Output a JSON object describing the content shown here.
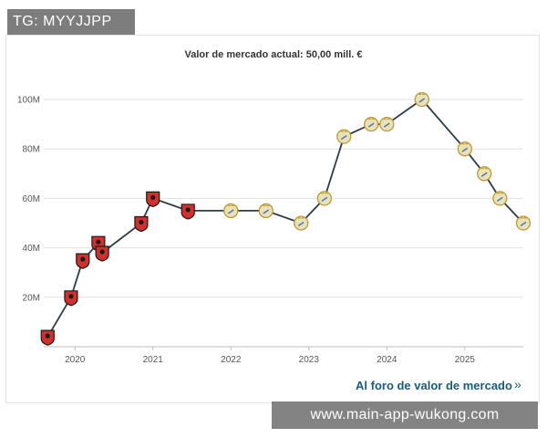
{
  "watermark_top": "TG: MYYJJPP",
  "watermark_bottom": "www.main-app-wukong.com",
  "link_text": "Al foro de valor de mercado",
  "link_icon": "arrow-right-icon",
  "colors": {
    "line": "#2f3b46",
    "grid": "#e2e2e2",
    "link": "#1d5a7a",
    "club_red": "#d0312d",
    "club_white": "#e9e2b8"
  },
  "chart_data": {
    "type": "line",
    "title": "Valor de mercado actual: 50,00 mill. €",
    "xlabel": "",
    "ylabel": "",
    "x_ticks": [
      "2020",
      "2021",
      "2022",
      "2023",
      "2024",
      "2025"
    ],
    "y_ticks": [
      "20M",
      "40M",
      "60M",
      "80M",
      "100M"
    ],
    "ylim": [
      0,
      100
    ],
    "xlim": [
      2019.6,
      2025.75
    ],
    "grid": true,
    "series": [
      {
        "points": [
          {
            "x": 2019.65,
            "y": 4,
            "club": "rennes"
          },
          {
            "x": 2019.95,
            "y": 20,
            "club": "rennes"
          },
          {
            "x": 2020.1,
            "y": 35,
            "club": "rennes"
          },
          {
            "x": 2020.3,
            "y": 42,
            "club": "rennes"
          },
          {
            "x": 2020.35,
            "y": 38,
            "club": "rennes"
          },
          {
            "x": 2020.85,
            "y": 50,
            "club": "rennes"
          },
          {
            "x": 2021.0,
            "y": 60,
            "club": "rennes"
          },
          {
            "x": 2021.45,
            "y": 55,
            "club": "rennes"
          },
          {
            "x": 2022.0,
            "y": 55,
            "club": "real-madrid"
          },
          {
            "x": 2022.45,
            "y": 55,
            "club": "real-madrid"
          },
          {
            "x": 2022.9,
            "y": 50,
            "club": "real-madrid"
          },
          {
            "x": 2023.2,
            "y": 60,
            "club": "real-madrid"
          },
          {
            "x": 2023.45,
            "y": 85,
            "club": "real-madrid"
          },
          {
            "x": 2023.8,
            "y": 90,
            "club": "real-madrid"
          },
          {
            "x": 2024.0,
            "y": 90,
            "club": "real-madrid"
          },
          {
            "x": 2024.45,
            "y": 100,
            "club": "real-madrid"
          },
          {
            "x": 2025.0,
            "y": 80,
            "club": "real-madrid"
          },
          {
            "x": 2025.25,
            "y": 70,
            "club": "real-madrid"
          },
          {
            "x": 2025.45,
            "y": 60,
            "club": "real-madrid"
          },
          {
            "x": 2025.75,
            "y": 50,
            "club": "real-madrid"
          }
        ]
      }
    ]
  }
}
